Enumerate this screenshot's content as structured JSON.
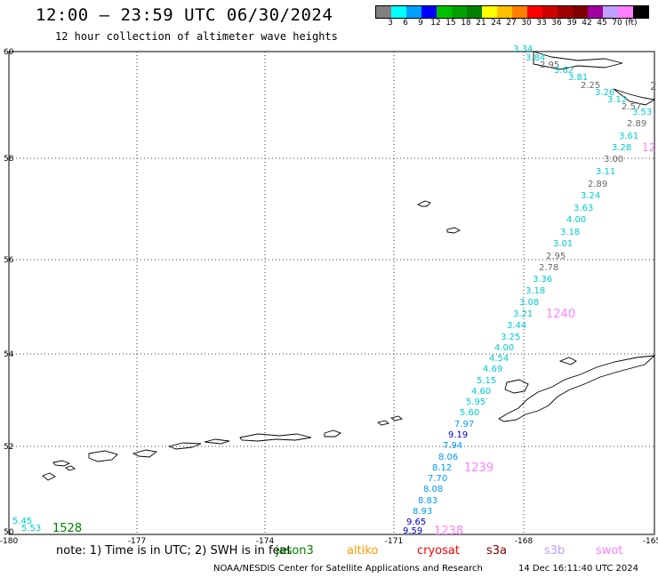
{
  "title": "12:00 – 23:59 UTC 06/30/2024",
  "subtitle": "12 hour collection of altimeter wave heights",
  "legend": {
    "colors": [
      "#808080",
      "#00ffff",
      "#00a0ff",
      "#0000ff",
      "#00c000",
      "#00a000",
      "#008000",
      "#ffff00",
      "#ffc000",
      "#ff8000",
      "#ff0000",
      "#d00000",
      "#a00000",
      "#800000",
      "#a000a0",
      "#c0a0ff",
      "#ff80ff",
      "#000000"
    ],
    "ticks": [
      "3",
      "6",
      "9",
      "12",
      "15",
      "18",
      "21",
      "24",
      "27",
      "30",
      "33",
      "36",
      "39",
      "42",
      "45",
      "70"
    ],
    "unit": "(ft)"
  },
  "axes": {
    "lon_ticks": [
      "-180",
      "-177",
      "-174",
      "-171",
      "-168",
      "-165"
    ],
    "lat_ticks": [
      "60",
      "58",
      "56",
      "54",
      "52",
      "50"
    ]
  },
  "swh_labels": [
    {
      "text": "3.34",
      "color": "#00cccc"
    },
    {
      "text": "3.84",
      "color": "#00cccc"
    },
    {
      "text": "2.95",
      "color": "#666666"
    },
    {
      "text": "3.62",
      "color": "#00cccc"
    },
    {
      "text": "3.81",
      "color": "#00cccc"
    },
    {
      "text": "2.25",
      "color": "#666666"
    },
    {
      "text": "3.26",
      "color": "#00cccc"
    },
    {
      "text": "3.12",
      "color": "#00cccc"
    },
    {
      "text": "2.57",
      "color": "#666666"
    },
    {
      "text": "3.53",
      "color": "#00cccc"
    },
    {
      "text": "2.89",
      "color": "#666666"
    },
    {
      "text": "3.61",
      "color": "#00cccc"
    },
    {
      "text": "3.28",
      "color": "#00cccc"
    },
    {
      "text": "3.00",
      "color": "#666666"
    },
    {
      "text": "3.11",
      "color": "#00cccc"
    },
    {
      "text": "2.89",
      "color": "#666666"
    },
    {
      "text": "3.24",
      "color": "#00cccc"
    },
    {
      "text": "3.63",
      "color": "#00cccc"
    },
    {
      "text": "4.00",
      "color": "#00cccc"
    },
    {
      "text": "3.18",
      "color": "#00cccc"
    },
    {
      "text": "3.01",
      "color": "#00cccc"
    },
    {
      "text": "2.95",
      "color": "#666666"
    },
    {
      "text": "2.78",
      "color": "#666666"
    },
    {
      "text": "3.36",
      "color": "#00cccc"
    },
    {
      "text": "3.18",
      "color": "#00cccc"
    },
    {
      "text": "3.08",
      "color": "#00cccc"
    },
    {
      "text": "3.21",
      "color": "#00cccc"
    },
    {
      "text": "3.44",
      "color": "#00cccc"
    },
    {
      "text": "3.25",
      "color": "#00cccc"
    },
    {
      "text": "4.00",
      "color": "#00cccc"
    },
    {
      "text": "4.54",
      "color": "#00cccc"
    },
    {
      "text": "4.69",
      "color": "#00cccc"
    },
    {
      "text": "5.15",
      "color": "#00cccc"
    },
    {
      "text": "4.60",
      "color": "#00cccc"
    },
    {
      "text": "5.95",
      "color": "#00cccc"
    },
    {
      "text": "5.60",
      "color": "#00cccc"
    },
    {
      "text": "7.97",
      "color": "#0099ff"
    },
    {
      "text": "9.19",
      "color": "#0000cc"
    },
    {
      "text": "7.94",
      "color": "#0099ff"
    },
    {
      "text": "8.06",
      "color": "#0099ff"
    },
    {
      "text": "8.12",
      "color": "#0099ff"
    },
    {
      "text": "7.70",
      "color": "#0099ff"
    },
    {
      "text": "8.08",
      "color": "#0099ff"
    },
    {
      "text": "8.83",
      "color": "#0099ff"
    },
    {
      "text": "8.93",
      "color": "#0099ff"
    },
    {
      "text": "9.65",
      "color": "#0000cc"
    },
    {
      "text": "9.59",
      "color": "#0000cc"
    },
    {
      "text": "5.45",
      "color": "#00cccc"
    },
    {
      "text": "5.53",
      "color": "#00cccc"
    }
  ],
  "pass_labels": [
    {
      "text": "1240",
      "color": "#ff80ff"
    },
    {
      "text": "1239",
      "color": "#ff80ff"
    },
    {
      "text": "1238",
      "color": "#ff80ff"
    },
    {
      "text": "1528",
      "color": "#008000"
    },
    {
      "text": "12",
      "color": "#ff80ff"
    },
    {
      "text": "2",
      "color": "#666666"
    }
  ],
  "note": "note:  1) Time is in UTC;  2) SWH is in feet",
  "missions": [
    {
      "text": "jason3",
      "color": "#008000"
    },
    {
      "text": "altiko",
      "color": "#ff9900"
    },
    {
      "text": "cryosat",
      "color": "#ff0000"
    },
    {
      "text": "s3a",
      "color": "#800000"
    },
    {
      "text": "s3b",
      "color": "#c0a0ff"
    },
    {
      "text": "swot",
      "color": "#ff80ff"
    }
  ],
  "footer": "NOAA/NESDIS Center for Satellite Applications and Research",
  "footer_time": "14 Dec 16:11:40 UTC 2024"
}
